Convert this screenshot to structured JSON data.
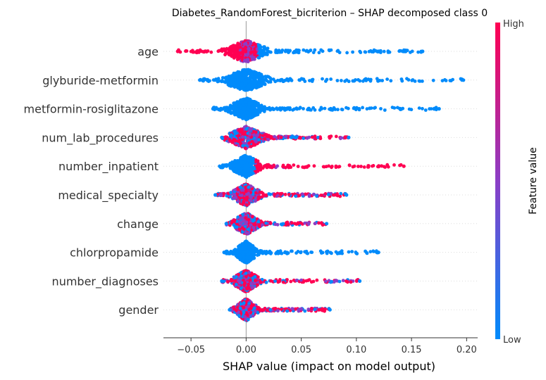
{
  "chart_data": {
    "type": "scatter",
    "subtype": "shap-beeswarm",
    "title": "Diabetes_RandomForest_bicriterion – SHAP decomposed class 0",
    "xlabel": "SHAP value (impact on model output)",
    "xlim": [
      -0.075,
      0.21
    ],
    "xticks": [
      -0.05,
      0.0,
      0.05,
      0.1,
      0.15,
      0.2
    ],
    "xtick_labels": [
      "−0.05",
      "0.00",
      "0.05",
      "0.10",
      "0.15",
      "0.20"
    ],
    "colorbar": {
      "label": "Feature value",
      "high_label": "High",
      "low_label": "Low",
      "high_color": "#ff0052",
      "mid_color": "#8b3ec6",
      "low_color": "#008bfb"
    },
    "features": [
      {
        "name": "age",
        "min": -0.062,
        "max": 0.16,
        "core_halfwidth": 0.011,
        "high_side": "left"
      },
      {
        "name": "glyburide-metformin",
        "min": -0.042,
        "max": 0.197,
        "core_halfwidth": 0.012,
        "high_side": "none"
      },
      {
        "name": "metformin-rosiglitazone",
        "min": -0.03,
        "max": 0.175,
        "core_halfwidth": 0.009,
        "high_side": "none"
      },
      {
        "name": "num_lab_procedures",
        "min": -0.022,
        "max": 0.093,
        "core_halfwidth": 0.01,
        "high_side": "mixed"
      },
      {
        "name": "number_inpatient",
        "min": -0.024,
        "max": 0.143,
        "core_halfwidth": 0.008,
        "high_side": "right"
      },
      {
        "name": "medical_specialty",
        "min": -0.028,
        "max": 0.091,
        "core_halfwidth": 0.008,
        "high_side": "mixed"
      },
      {
        "name": "change",
        "min": -0.018,
        "max": 0.073,
        "core_halfwidth": 0.007,
        "high_side": "mixed"
      },
      {
        "name": "chlorpropamide",
        "min": -0.02,
        "max": 0.12,
        "core_halfwidth": 0.006,
        "high_side": "none"
      },
      {
        "name": "number_diagnoses",
        "min": -0.022,
        "max": 0.103,
        "core_halfwidth": 0.007,
        "high_side": "mixed"
      },
      {
        "name": "gender",
        "min": -0.015,
        "max": 0.076,
        "core_halfwidth": 0.006,
        "high_side": "mixed"
      }
    ]
  }
}
